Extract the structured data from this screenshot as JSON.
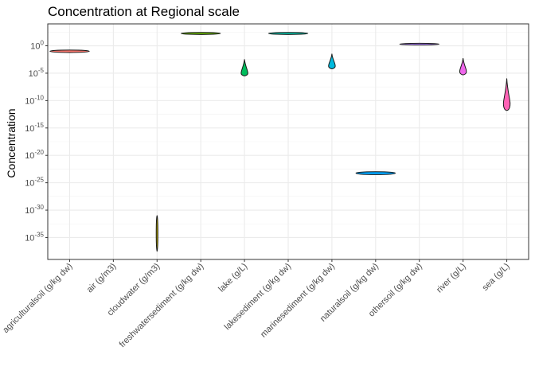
{
  "chart_data": {
    "type": "violin",
    "title": "Concentration at Regional scale",
    "xlabel": "",
    "ylabel": "Concentration",
    "y_scale": "log10",
    "ylim_log10": [
      -39,
      4
    ],
    "y_ticks": [
      {
        "base": "10",
        "exp": "0",
        "log10": 0
      },
      {
        "base": "10",
        "exp": "-5",
        "log10": -5
      },
      {
        "base": "10",
        "exp": "-10",
        "log10": -10
      },
      {
        "base": "10",
        "exp": "-15",
        "log10": -15
      },
      {
        "base": "10",
        "exp": "-20",
        "log10": -20
      },
      {
        "base": "10",
        "exp": "-25",
        "log10": -25
      },
      {
        "base": "10",
        "exp": "-30",
        "log10": -30
      },
      {
        "base": "10",
        "exp": "-35",
        "log10": -35
      }
    ],
    "categories": [
      "agriculturalsoil (g/kg dw)",
      "air (g/m3)",
      "cloudwater (g/m3)",
      "freshwatersediment (g/kg dw)",
      "lake (g/L)",
      "lakesediment (g/kg dw)",
      "marinesediment (g/kg dw)",
      "naturalsoil (g/kg dw)",
      "othersoil (g/kg dw)",
      "river (g/L)",
      "sea (g/L)"
    ],
    "series": [
      {
        "category": "agriculturalsoil (g/kg dw)",
        "color": "#F8766D",
        "log10_min": -1.3,
        "log10_max": -0.7,
        "log10_mode": -1.0,
        "shape": "flat"
      },
      {
        "category": "air (g/m3)",
        "color": "#DB8E00",
        "log10_min": null,
        "log10_max": null,
        "log10_mode": null,
        "shape": "none"
      },
      {
        "category": "cloudwater (g/m3)",
        "color": "#AEA200",
        "log10_min": -37.5,
        "log10_max": -31.0,
        "log10_mode": -34.0,
        "shape": "line"
      },
      {
        "category": "freshwatersediment (g/kg dw)",
        "color": "#64B200",
        "log10_min": 2.0,
        "log10_max": 2.5,
        "log10_mode": 2.2,
        "shape": "flat"
      },
      {
        "category": "lake (g/L)",
        "color": "#00BD5C",
        "log10_min": -5.5,
        "log10_max": -2.5,
        "log10_mode": -5.0,
        "shape": "teardrop"
      },
      {
        "category": "lakesediment (g/kg dw)",
        "color": "#00C1A7",
        "log10_min": 2.0,
        "log10_max": 2.5,
        "log10_mode": 2.2,
        "shape": "flat"
      },
      {
        "category": "marinesediment (g/kg dw)",
        "color": "#00BADE",
        "log10_min": -4.2,
        "log10_max": -1.5,
        "log10_mode": -3.7,
        "shape": "teardrop"
      },
      {
        "category": "naturalsoil (g/kg dw)",
        "color": "#00A6FF",
        "log10_min": -23.6,
        "log10_max": -22.9,
        "log10_mode": -23.3,
        "shape": "flat"
      },
      {
        "category": "othersoil (g/kg dw)",
        "color": "#B385FF",
        "log10_min": 0.1,
        "log10_max": 0.5,
        "log10_mode": 0.3,
        "shape": "flat"
      },
      {
        "category": "river (g/L)",
        "color": "#EF67EB",
        "log10_min": -5.3,
        "log10_max": -2.3,
        "log10_mode": -4.7,
        "shape": "teardrop"
      },
      {
        "category": "sea (g/L)",
        "color": "#FF63B6",
        "log10_min": -11.8,
        "log10_max": -6.0,
        "log10_mode": -10.5,
        "shape": "teardrop"
      }
    ],
    "grid": true,
    "legend": "none"
  }
}
